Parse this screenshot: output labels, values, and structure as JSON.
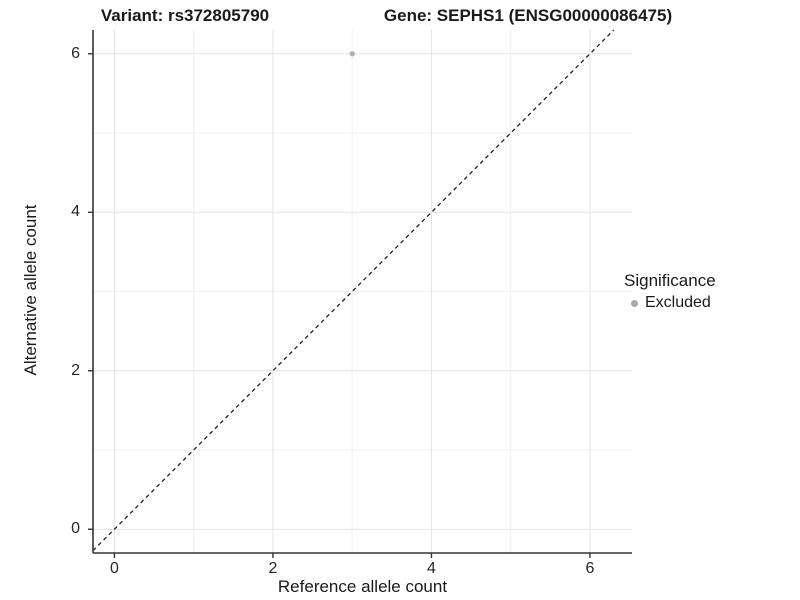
{
  "titles": {
    "left": "Variant: rs372805790",
    "right": "Gene: SEPHS1 (ENSG00000086475)"
  },
  "legend": {
    "title": "Significance",
    "items": [
      {
        "label": "Excluded",
        "color": "#a8a8a8"
      }
    ]
  },
  "chart_data": {
    "type": "scatter",
    "titles": [
      "Variant: rs372805790",
      "Gene: SEPHS1 (ENSG00000086475)"
    ],
    "xlabel": "Reference allele count",
    "ylabel": "Alternative allele count",
    "xlim": [
      -0.27,
      6.53
    ],
    "ylim": [
      -0.3,
      6.3
    ],
    "xticks": [
      0,
      2,
      4,
      6
    ],
    "yticks": [
      0,
      2,
      4,
      6
    ],
    "x_minor_gridlines": [
      1,
      3,
      5
    ],
    "y_minor_gridlines": [
      1,
      3,
      5
    ],
    "grid": "major+minor",
    "legend_position": "right",
    "legend_title": "Significance",
    "series": [
      {
        "name": "Excluded",
        "color": "#b0b0b0",
        "point_radius": 2.6,
        "points": [
          {
            "x": 3,
            "y": 6
          }
        ]
      }
    ],
    "reference_line": {
      "kind": "identity",
      "equation": "y = x",
      "style": "dashed",
      "color": "#111111"
    },
    "colors": {
      "grid_major": "#e4e4e4",
      "grid_minor": "#efefef",
      "axis": "#333333",
      "tick_label": "#262626",
      "background": "#ffffff"
    }
  }
}
